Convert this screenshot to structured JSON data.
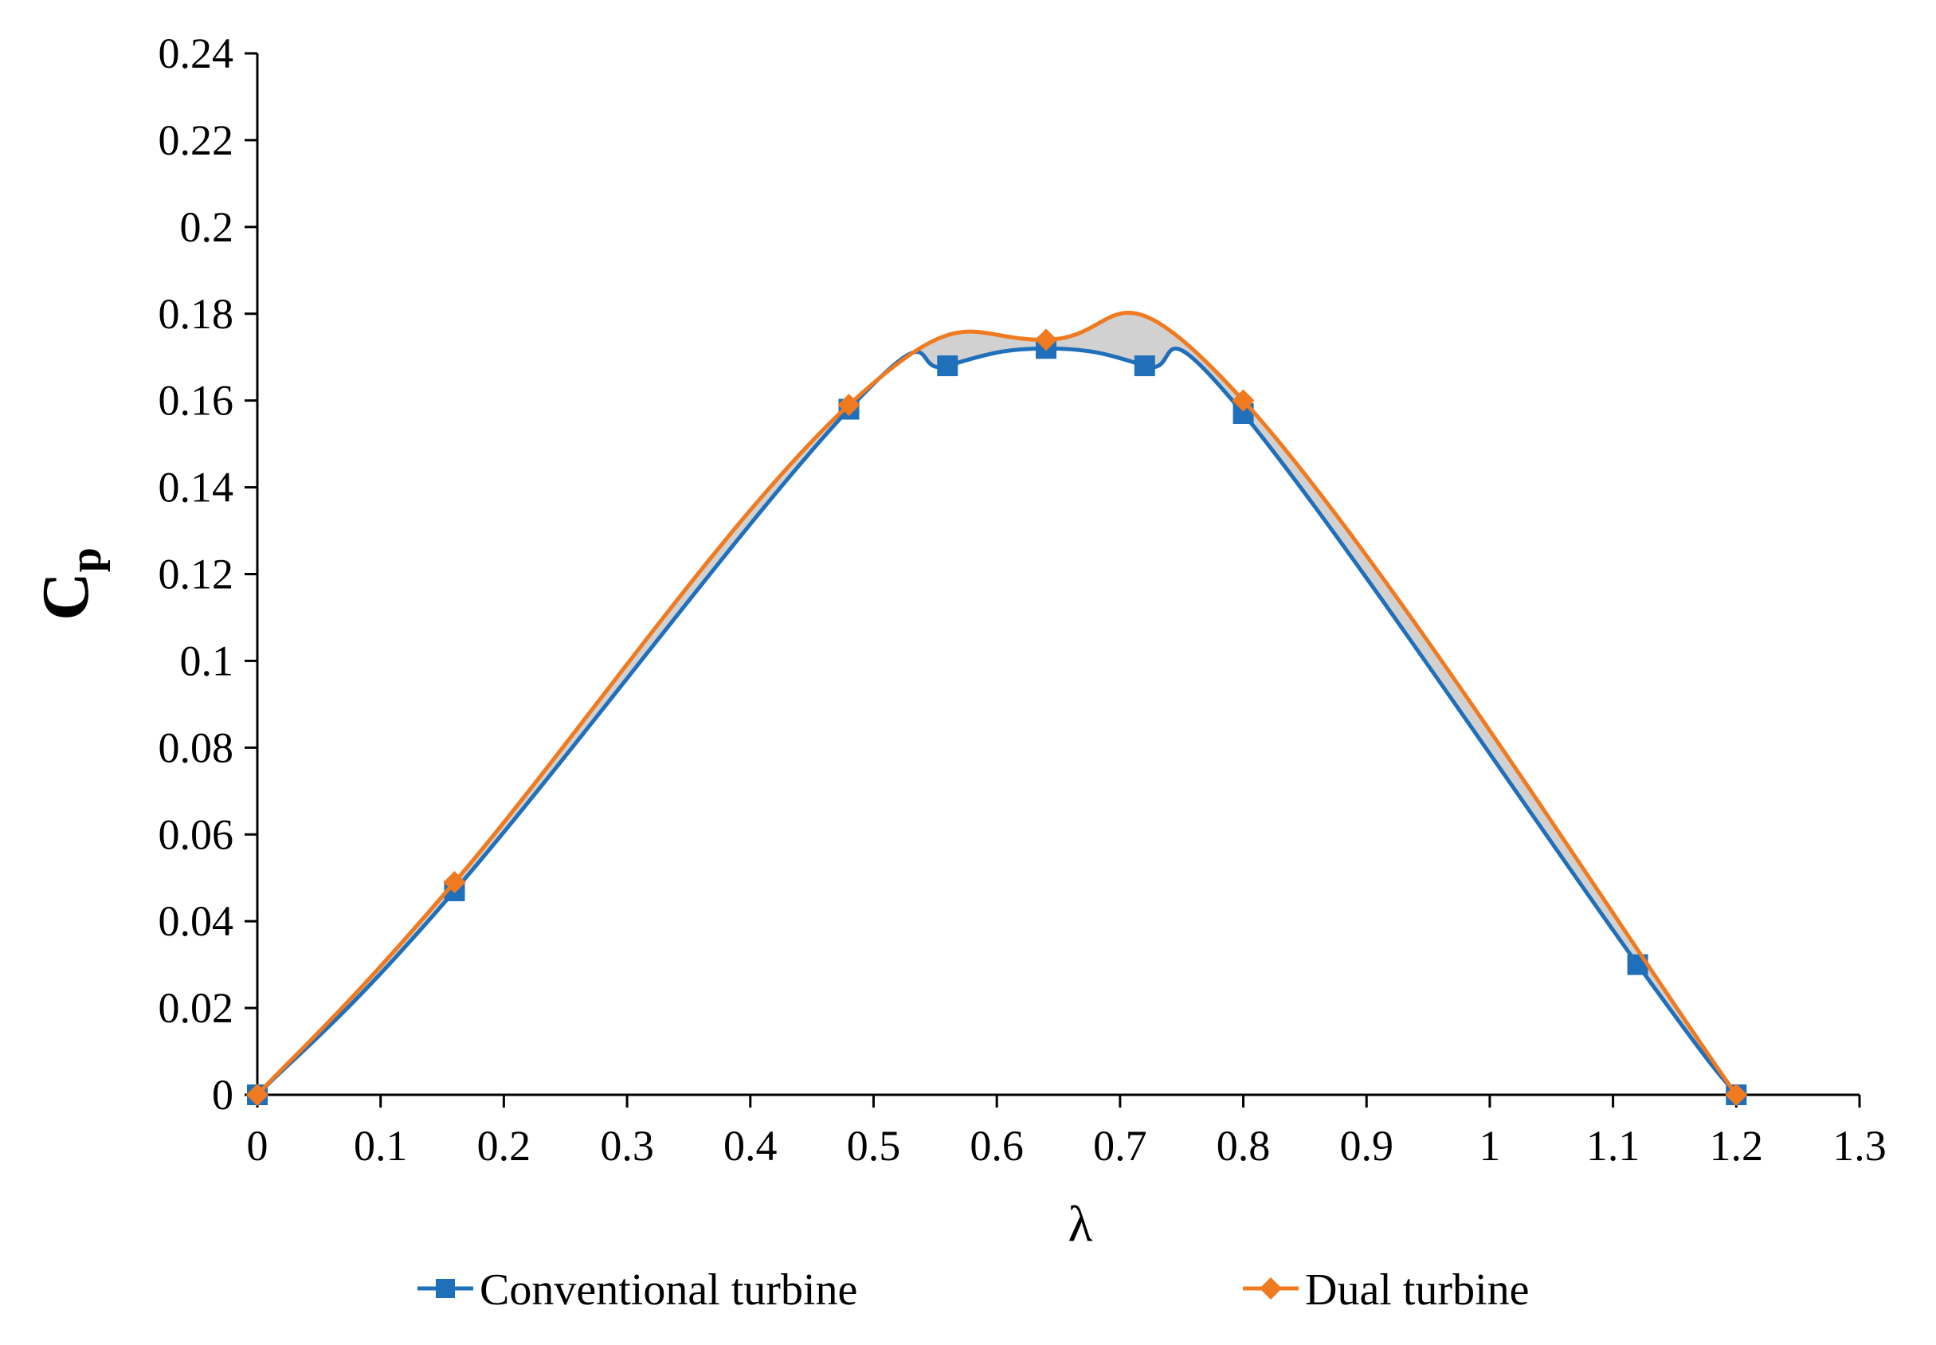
{
  "chart_data": {
    "type": "line",
    "title": "",
    "xlabel": "λ",
    "ylabel_main": "C",
    "ylabel_sub": "p",
    "xlim": [
      0,
      1.3
    ],
    "ylim": [
      0,
      0.24
    ],
    "xticks": [
      0,
      0.1,
      0.2,
      0.3,
      0.4,
      0.5,
      0.6,
      0.7,
      0.8,
      0.9,
      1.0,
      1.1,
      1.2,
      1.3
    ],
    "xtick_labels": [
      "0",
      "0.1",
      "0.2",
      "0.3",
      "0.4",
      "0.5",
      "0.6",
      "0.7",
      "0.8",
      "0.9",
      "1",
      "1.1",
      "1.2",
      "1.3"
    ],
    "yticks": [
      0,
      0.02,
      0.04,
      0.06,
      0.08,
      0.1,
      0.12,
      0.14,
      0.16,
      0.18,
      0.2,
      0.22,
      0.24
    ],
    "ytick_labels": [
      "0",
      "0.02",
      "0.04",
      "0.06",
      "0.08",
      "0.1",
      "0.12",
      "0.14",
      "0.16",
      "0.18",
      "0.2",
      "0.22",
      "0.24"
    ],
    "grid": false,
    "legend_position": "bottom",
    "series": [
      {
        "name": "Conventional turbine",
        "color": "#1f6fba",
        "marker": "square",
        "x": [
          0,
          0.16,
          0.48,
          0.56,
          0.64,
          0.72,
          0.8,
          1.12,
          1.2
        ],
        "y": [
          0,
          0.047,
          0.158,
          0.168,
          0.172,
          0.168,
          0.157,
          0.03,
          0
        ]
      },
      {
        "name": "Dual turbine",
        "color": "#f07a20",
        "marker": "diamond",
        "x": [
          0,
          0.16,
          0.48,
          0.64,
          0.8,
          1.2
        ],
        "y": [
          0,
          0.049,
          0.159,
          0.174,
          0.16,
          0
        ]
      }
    ]
  }
}
